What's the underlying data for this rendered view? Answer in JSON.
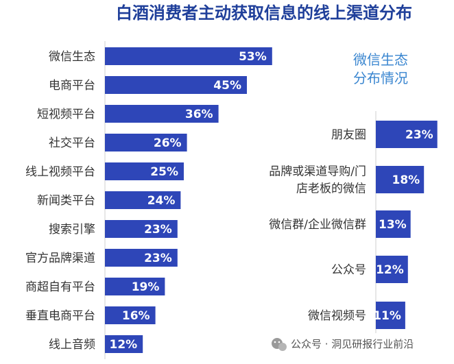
{
  "title": "白酒消费者主动获取信息的线上渠道分布",
  "watermark": "公众号 · 洞见研报行业前沿",
  "colors": {
    "bar": "#2e46b8",
    "title": "#1f3f9a",
    "subtitle": "#3a86d0"
  },
  "chart_data": [
    {
      "type": "bar",
      "orientation": "horizontal",
      "title": "",
      "categories": [
        "微信生态",
        "电商平台",
        "短视频平台",
        "社交平台",
        "线上视频平台",
        "新闻类平台",
        "搜索引擎",
        "官方品牌渠道",
        "商超自有平台",
        "垂直电商平台",
        "线上音频"
      ],
      "values": [
        53,
        45,
        36,
        26,
        25,
        24,
        23,
        23,
        19,
        16,
        12
      ],
      "value_labels": [
        "53%",
        "45%",
        "36%",
        "26%",
        "25%",
        "24%",
        "23%",
        "23%",
        "19%",
        "16%",
        "12%"
      ],
      "xlim": [
        0,
        60
      ]
    },
    {
      "type": "bar",
      "orientation": "horizontal",
      "title_lines": [
        "微信生态",
        "分布情况"
      ],
      "categories": [
        [
          "朋友圈"
        ],
        [
          "品牌或渠道导购/门",
          "店老板的微信"
        ],
        [
          "微信群/企业微信群"
        ],
        [
          "公众号"
        ],
        [
          "微信视频号"
        ]
      ],
      "values": [
        23,
        18,
        13,
        12,
        11
      ],
      "value_labels": [
        "23%",
        "18%",
        "13%",
        "12%",
        "11%"
      ],
      "xlim": [
        0,
        25
      ]
    }
  ]
}
